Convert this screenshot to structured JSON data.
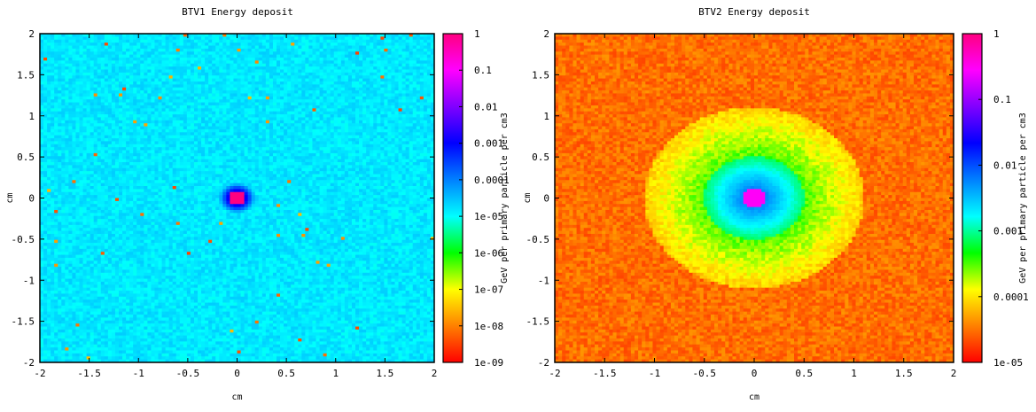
{
  "chart_data": [
    {
      "type": "heatmap",
      "title": "BTV1 Energy deposit",
      "xlabel": "cm",
      "ylabel": "cm",
      "xlim": [
        -2,
        2
      ],
      "ylim": [
        -2,
        2
      ],
      "xticks": [
        "-2",
        "-1.5",
        "-1",
        "-0.5",
        "0",
        "0.5",
        "1",
        "1.5",
        "2"
      ],
      "yticks": [
        "-2",
        "-1.5",
        "-1",
        "-0.5",
        "0",
        "0.5",
        "1",
        "1.5",
        "2"
      ],
      "colorbar": {
        "label": "GeV per primary particle per cm3",
        "scale": "log",
        "range": [
          1e-09,
          1
        ],
        "ticks": [
          "1e-09",
          "1e-08",
          "1e-07",
          "1e-06",
          "1e-05",
          "0.0001",
          "0.001",
          "0.01",
          "0.1",
          "1"
        ],
        "colors": [
          "#ff0000",
          "#ff8000",
          "#ffff00",
          "#00ff00",
          "#00ffff",
          "#0080ff",
          "#0000ff",
          "#8000ff",
          "#ff00ff",
          "#ff0080"
        ]
      },
      "center_value": 1,
      "background_value": 1.5e-05,
      "grid": false,
      "legend": "colorbar-right"
    },
    {
      "type": "heatmap",
      "title": "BTV2 Energy deposit",
      "xlabel": "cm",
      "ylabel": "cm",
      "xlim": [
        -2,
        2
      ],
      "ylim": [
        -2,
        2
      ],
      "xticks": [
        "-2",
        "-1.5",
        "-1",
        "-0.5",
        "0",
        "0.5",
        "1",
        "1.5",
        "2"
      ],
      "yticks": [
        "-2",
        "-1.5",
        "-1",
        "-0.5",
        "0",
        "0.5",
        "1",
        "1.5",
        "2"
      ],
      "colorbar": {
        "label": "GeV per primary particle per cm3",
        "scale": "log",
        "range": [
          1e-05,
          1
        ],
        "ticks": [
          "1e-05",
          "0.0001",
          "0.001",
          "0.01",
          "0.1",
          "1"
        ],
        "colors": [
          "#ff0000",
          "#ff8000",
          "#ffff00",
          "#00ff00",
          "#00ffff",
          "#0080ff",
          "#0000ff",
          "#8000ff",
          "#ff00ff",
          "#ff0080"
        ]
      },
      "center_value": 0.3,
      "ring_radius_cm": 1.1,
      "background_value": 3e-05,
      "grid": false,
      "legend": "colorbar-right"
    }
  ]
}
